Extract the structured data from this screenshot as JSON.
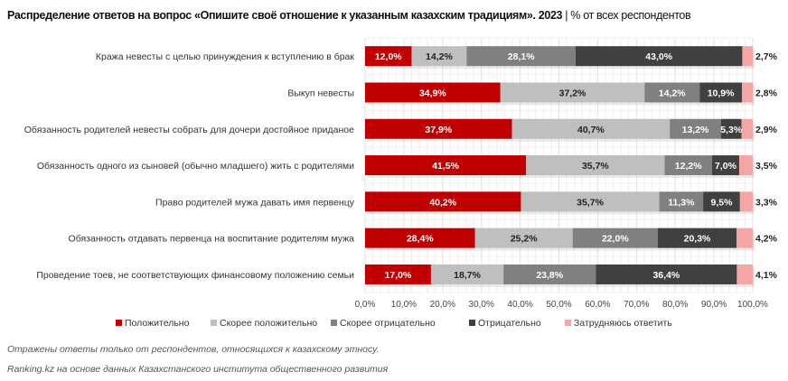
{
  "chart_data": {
    "type": "bar",
    "orientation": "horizontal",
    "stacked": true,
    "title": "Распределение ответов на вопрос «Опишите своё отношение к указанным казахским традициям». 2023",
    "subtitle": "| % от всех респондентов",
    "categories": [
      "Кража невесты с целью принуждения к вступлению в брак",
      "Выкуп невесты",
      "Обязанность родителей невесты собрать для дочери достойное приданое",
      "Обязанность одного из сыновей (обычно младшего) жить с родителями",
      "Право родителей мужа давать имя первенцу",
      "Обязанность отдавать первенца на воспитание родителям мужа",
      "Проведение тоев, не соответствующих финансовому положению семьи"
    ],
    "series": [
      {
        "name": "Положительно",
        "color": "#c00000",
        "label_color": "#ffffff",
        "values": [
          12.0,
          34.9,
          37.9,
          41.5,
          40.2,
          28.4,
          17.0
        ],
        "labels": [
          "12,0%",
          "34,9%",
          "37,9%",
          "41,5%",
          "40,2%",
          "28,4%",
          "17,0%"
        ]
      },
      {
        "name": "Скорее положительно",
        "color": "#bfbfbf",
        "label_color": "#222222",
        "values": [
          14.2,
          37.2,
          40.7,
          35.7,
          35.7,
          25.2,
          18.7
        ],
        "labels": [
          "14,2%",
          "37,2%",
          "40,7%",
          "35,7%",
          "35,7%",
          "25,2%",
          "18,7%"
        ]
      },
      {
        "name": "Скорее отрицательно",
        "color": "#808080",
        "label_color": "#ffffff",
        "values": [
          28.1,
          14.2,
          13.2,
          12.2,
          11.3,
          22.0,
          23.8
        ],
        "labels": [
          "28,1%",
          "14,2%",
          "13,2%",
          "12,2%",
          "11,3%",
          "22,0%",
          "23,8%"
        ]
      },
      {
        "name": "Отрицательно",
        "color": "#404040",
        "label_color": "#ffffff",
        "values": [
          43.0,
          10.9,
          5.3,
          7.0,
          9.5,
          20.3,
          36.4
        ],
        "labels": [
          "43,0%",
          "10,9%",
          "5,3%",
          "7,0%",
          "9,5%",
          "20,3%",
          "36,4%"
        ]
      },
      {
        "name": "Затрудняюсь ответить",
        "color": "#f4a6a6",
        "label_color": "#222222",
        "label_outside": true,
        "values": [
          2.7,
          2.8,
          2.9,
          3.5,
          3.3,
          4.2,
          4.1
        ],
        "labels": [
          "2,7%",
          "2,8%",
          "2,9%",
          "3,5%",
          "3,3%",
          "4,2%",
          "4,1%"
        ]
      }
    ],
    "xlim": [
      0,
      100
    ],
    "xticks": [
      "0,0%",
      "10,0%",
      "20,0%",
      "30,0%",
      "40,0%",
      "50,0%",
      "60,0%",
      "70,0%",
      "80,0%",
      "90,0%",
      "100,0%"
    ],
    "grid": true,
    "legend": "bottom"
  },
  "notes": [
    "Отражены ответы только от респондентов, относящихся к казахскому этносу.",
    "Ranking.kz на основе данных Казахстанского института общественного развития"
  ]
}
